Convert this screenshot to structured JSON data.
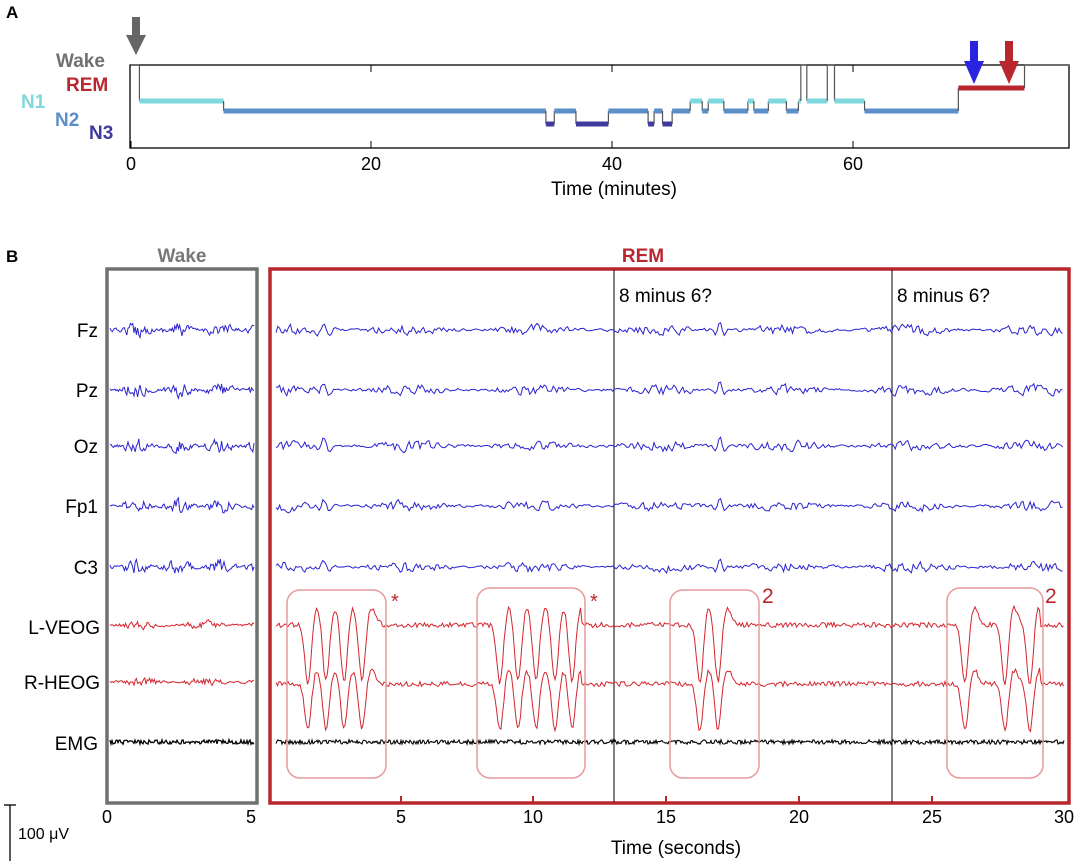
{
  "panel_a": {
    "label": "A",
    "stage_labels": {
      "wake": "Wake",
      "rem": "REM",
      "n1": "N1",
      "n2": "N2",
      "n3": "N3"
    },
    "x_ticks": [
      "0",
      "20",
      "40",
      "60"
    ],
    "x_label": "Time (minutes)"
  },
  "panel_b": {
    "label": "B",
    "wake_title": "Wake",
    "rem_title": "REM",
    "channels": [
      "Fz",
      "Pz",
      "Oz",
      "Fp1",
      "C3",
      "L-VEOG",
      "R-HEOG",
      "EMG"
    ],
    "task_labels": [
      "8 minus 6?",
      "8 minus 6?"
    ],
    "eye_markers": [
      "*",
      "*",
      "2",
      "2"
    ],
    "wake_ticks": [
      "0",
      "5"
    ],
    "rem_ticks": [
      "5",
      "10",
      "15",
      "20",
      "25",
      "30"
    ],
    "x_label": "Time (seconds)",
    "scale_label": "100 μV"
  },
  "colors": {
    "wake": "#707070",
    "rem": "#b8262e",
    "n1": "#7fd8de",
    "n2": "#5c8fc8",
    "n3": "#3f3a9c",
    "eeg": "#2a24d0",
    "eog": "#d4262e",
    "emg": "#000000",
    "blue_arrow": "#2a24e0",
    "red_arrow": "#b8262e",
    "gray_arrow": "#666666"
  },
  "chart_data": [
    {
      "type": "line",
      "title": "",
      "xlabel": "Time (minutes)",
      "ylabel": "",
      "xlim": [
        0,
        78
      ],
      "categories": [
        "Wake",
        "REM",
        "N1",
        "N2",
        "N3"
      ],
      "series": [
        {
          "values": [
            [
              0,
              "Wake"
            ],
            [
              0.7,
              "N1"
            ],
            [
              7.7,
              "N2"
            ],
            [
              34.5,
              "N3"
            ],
            [
              35.2,
              "N2"
            ],
            [
              37,
              "N3"
            ],
            [
              39.7,
              "N2"
            ],
            [
              43,
              "N3"
            ],
            [
              43.5,
              "N2"
            ],
            [
              44.2,
              "N3"
            ],
            [
              45,
              "N2"
            ],
            [
              46.5,
              "N1"
            ],
            [
              47.5,
              "N2"
            ],
            [
              48,
              "N1"
            ],
            [
              49.3,
              "N2"
            ],
            [
              51.3,
              "N1"
            ],
            [
              51.8,
              "N2"
            ],
            [
              53,
              "N1"
            ],
            [
              54.5,
              "N2"
            ],
            [
              55.5,
              "N1"
            ],
            [
              55.7,
              "Wake"
            ],
            [
              56.2,
              "N1"
            ],
            [
              57.9,
              "Wake"
            ],
            [
              58.5,
              "N1"
            ],
            [
              61,
              "N2"
            ],
            [
              68.8,
              "REM"
            ],
            [
              74.3,
              "Wake"
            ],
            [
              78,
              "Wake"
            ]
          ]
        }
      ],
      "markers": [
        {
          "color": "gray",
          "x": 0
        },
        {
          "color": "blue",
          "x": 70.2
        },
        {
          "color": "red",
          "x": 72.6
        }
      ]
    },
    {
      "type": "line",
      "title": "",
      "xlabel": "Time (seconds)",
      "ylabel": "",
      "xlim": [
        0,
        30
      ],
      "segments": [
        "Wake (0-5 s)",
        "REM (0-30 s)"
      ],
      "series": [
        {
          "name": "Fz"
        },
        {
          "name": "Pz"
        },
        {
          "name": "Oz"
        },
        {
          "name": "Fp1"
        },
        {
          "name": "C3"
        },
        {
          "name": "L-VEOG"
        },
        {
          "name": "R-HEOG"
        },
        {
          "name": "EMG"
        }
      ],
      "events": [
        {
          "label": "8 minus 6?",
          "x": 13.0
        },
        {
          "label": "8 minus 6?",
          "x": 23.5
        }
      ],
      "rapid_eye_movement_boxes": [
        [
          0.6,
          4.3
        ],
        [
          8.0,
          12.2
        ],
        [
          15.4,
          18.3
        ],
        [
          25.9,
          29.5
        ]
      ],
      "scale_bar": "100 μV"
    }
  ]
}
